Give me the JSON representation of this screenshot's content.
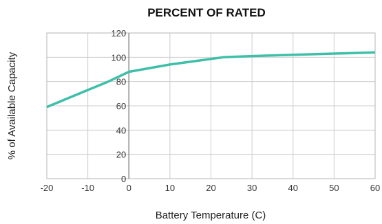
{
  "chart_data": {
    "type": "line",
    "title": "PERCENT OF RATED",
    "xlabel": "Battery Temperature (C)",
    "ylabel": "% of Available Capacity",
    "xlim": [
      -20,
      60
    ],
    "ylim": [
      0,
      120
    ],
    "x_ticks": [
      "-20",
      "-10",
      "0",
      "10",
      "20",
      "30",
      "40",
      "50",
      "60"
    ],
    "y_ticks": [
      "0",
      "20",
      "40",
      "60",
      "80",
      "100",
      "120"
    ],
    "grid": true,
    "legend": "none",
    "series": [
      {
        "color": "#3dbfa8",
        "x": [
          -20,
          -10,
          -5,
          0,
          10,
          23,
          30,
          40,
          50,
          60
        ],
        "y": [
          59,
          73,
          80,
          88,
          94,
          100,
          101,
          102,
          103,
          104
        ]
      }
    ]
  }
}
